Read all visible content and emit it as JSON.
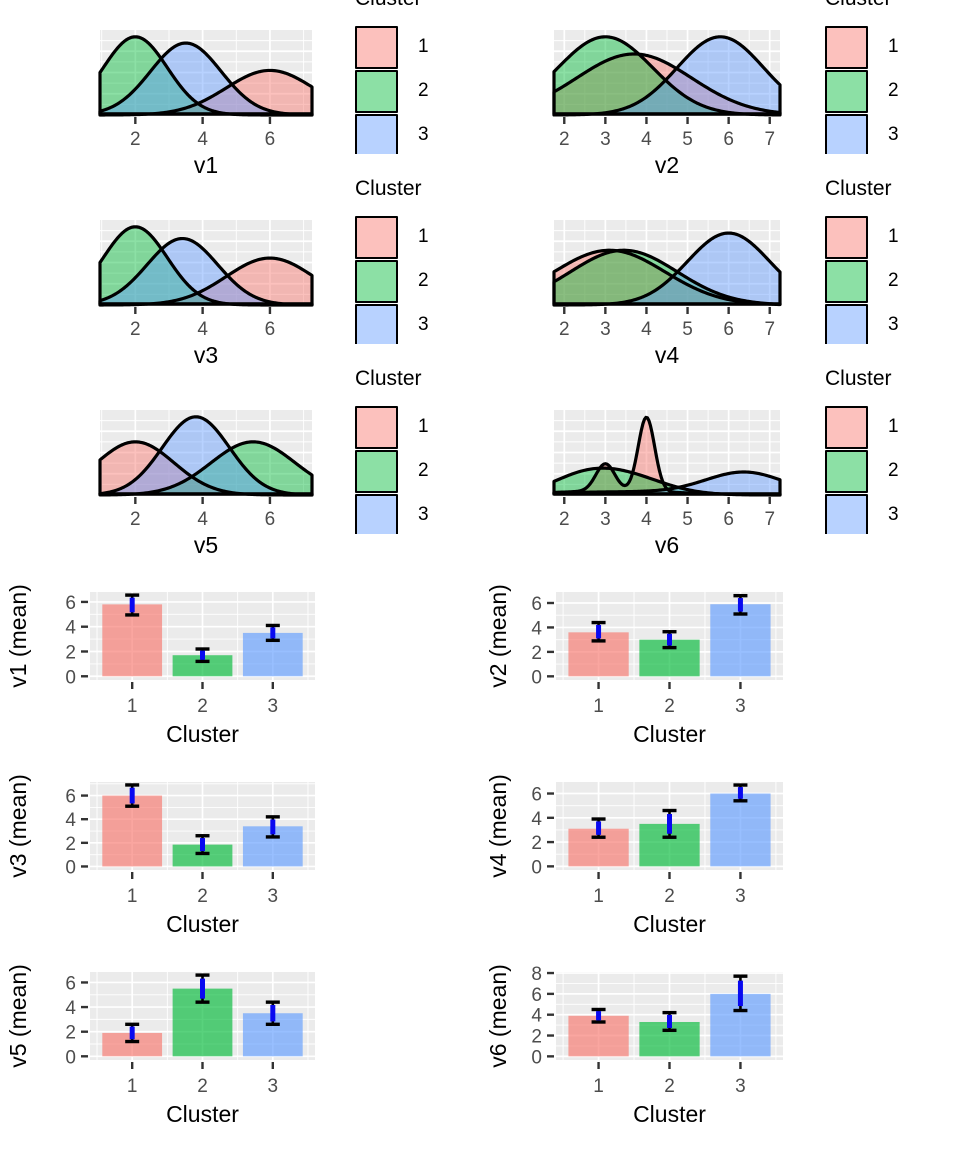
{
  "palette": {
    "c1": "#F8766D",
    "c2": "#00BA38",
    "c3": "#619CFF",
    "density_fill_alpha": 0.45,
    "bar_fill_alpha": 0.65,
    "curve_stroke": "#000000",
    "panel_bg": "#EBEBEB",
    "grid_color": "#FFFFFF",
    "tick_text_color": "#4D4D4D",
    "axis_title_color": "#000000",
    "tick_mark_color": "#333333",
    "errorbar_inner_color": "#0909F0",
    "errorbar_outer_color": "#000000"
  },
  "legend": {
    "title": "Cluster",
    "entries": [
      {
        "label": "1",
        "color": "c1"
      },
      {
        "label": "2",
        "color": "c2"
      },
      {
        "label": "3",
        "color": "c3"
      }
    ]
  },
  "chart_data": [
    {
      "kind": "density",
      "xlabel": "v1",
      "xlim": [
        0.95,
        7.25
      ],
      "x_ticks": [
        2,
        4,
        6
      ],
      "x_minor": [
        1,
        3,
        5,
        7
      ],
      "legend_title": "Cluster",
      "series": [
        {
          "cluster": "1",
          "color": "c1",
          "components": [
            [
              6.0,
              1.3,
              0.57
            ]
          ]
        },
        {
          "cluster": "2",
          "color": "c2",
          "components": [
            [
              2.0,
              0.95,
              1.0
            ]
          ]
        },
        {
          "cluster": "3",
          "color": "c3",
          "components": [
            [
              3.5,
              1.05,
              0.92
            ]
          ]
        }
      ]
    },
    {
      "kind": "density",
      "xlabel": "v2",
      "xlim": [
        1.75,
        7.25
      ],
      "x_ticks": [
        2,
        3,
        4,
        5,
        6,
        7
      ],
      "x_minor": [
        2.5,
        3.5,
        4.5,
        5.5,
        6.5
      ],
      "legend_title": "Cluster",
      "series": [
        {
          "cluster": "1",
          "color": "c1",
          "components": [
            [
              3.7,
              1.4,
              0.78
            ]
          ]
        },
        {
          "cluster": "2",
          "color": "c2",
          "components": [
            [
              3.0,
              1.15,
              1.0
            ]
          ]
        },
        {
          "cluster": "3",
          "color": "c3",
          "components": [
            [
              5.8,
              1.05,
              1.0
            ]
          ]
        }
      ]
    },
    {
      "kind": "density",
      "xlabel": "v3",
      "xlim": [
        0.95,
        7.25
      ],
      "x_ticks": [
        2,
        4,
        6
      ],
      "x_minor": [
        1,
        3,
        5,
        7
      ],
      "legend_title": "Cluster",
      "series": [
        {
          "cluster": "1",
          "color": "c1",
          "components": [
            [
              6.0,
              1.3,
              0.6
            ]
          ]
        },
        {
          "cluster": "2",
          "color": "c2",
          "components": [
            [
              2.0,
              0.95,
              1.0
            ]
          ]
        },
        {
          "cluster": "3",
          "color": "c3",
          "components": [
            [
              3.4,
              1.05,
              0.85
            ]
          ]
        }
      ]
    },
    {
      "kind": "density",
      "xlabel": "v4",
      "xlim": [
        1.75,
        7.25
      ],
      "x_ticks": [
        2,
        3,
        4,
        5,
        6,
        7
      ],
      "x_minor": [
        2.5,
        3.5,
        4.5,
        5.5,
        6.5
      ],
      "legend_title": "Cluster",
      "series": [
        {
          "cluster": "1",
          "color": "c1",
          "components": [
            [
              3.1,
              1.35,
              0.7
            ]
          ]
        },
        {
          "cluster": "2",
          "color": "c2",
          "components": [
            [
              3.45,
              1.3,
              0.7
            ]
          ]
        },
        {
          "cluster": "3",
          "color": "c3",
          "components": [
            [
              6.0,
              1.0,
              0.92
            ]
          ]
        }
      ]
    },
    {
      "kind": "density",
      "xlabel": "v5",
      "xlim": [
        0.95,
        7.25
      ],
      "x_ticks": [
        2,
        4,
        6
      ],
      "x_minor": [
        1,
        3,
        5,
        7
      ],
      "legend_title": "Cluster",
      "series": [
        {
          "cluster": "1",
          "color": "c1",
          "components": [
            [
              2.0,
              1.15,
              0.68
            ]
          ]
        },
        {
          "cluster": "2",
          "color": "c2",
          "components": [
            [
              5.5,
              1.25,
              0.68
            ]
          ]
        },
        {
          "cluster": "3",
          "color": "c3",
          "components": [
            [
              3.8,
              1.0,
              1.0
            ]
          ]
        }
      ]
    },
    {
      "kind": "density",
      "xlabel": "v6",
      "xlim": [
        1.75,
        7.25
      ],
      "x_ticks": [
        2,
        3,
        4,
        5,
        6,
        7
      ],
      "x_minor": [
        2.5,
        3.5,
        4.5,
        5.5,
        6.5
      ],
      "legend_title": "Cluster",
      "series": [
        {
          "cluster": "1",
          "color": "c1",
          "components": [
            [
              4.0,
              0.2,
              0.95
            ],
            [
              3.0,
              0.23,
              0.35
            ],
            [
              3.2,
              1.6,
              0.05
            ]
          ]
        },
        {
          "cluster": "2",
          "color": "c2",
          "components": [
            [
              3.2,
              1.05,
              0.3
            ],
            [
              2.3,
              0.7,
              0.08
            ]
          ]
        },
        {
          "cluster": "3",
          "color": "c3",
          "components": [
            [
              6.4,
              0.95,
              0.28
            ],
            [
              3.5,
              2.0,
              0.04
            ]
          ]
        }
      ]
    },
    {
      "kind": "bar",
      "xlabel": "Cluster",
      "ylabel": "v1 (mean)",
      "categories": [
        "1",
        "2",
        "3"
      ],
      "values": [
        5.8,
        1.7,
        3.5
      ],
      "err_low": [
        4.95,
        1.2,
        2.9
      ],
      "err_high": [
        6.55,
        2.2,
        4.1
      ],
      "y_ticks": [
        0,
        2,
        4,
        6
      ],
      "ylim": [
        -0.3,
        6.8
      ],
      "colors": [
        "c1",
        "c2",
        "c3"
      ]
    },
    {
      "kind": "bar",
      "xlabel": "Cluster",
      "ylabel": "v2 (mean)",
      "categories": [
        "1",
        "2",
        "3"
      ],
      "values": [
        3.6,
        3.0,
        5.9
      ],
      "err_low": [
        2.9,
        2.35,
        5.1
      ],
      "err_high": [
        4.4,
        3.65,
        6.6
      ],
      "y_ticks": [
        0,
        2,
        4,
        6
      ],
      "ylim": [
        -0.3,
        6.9
      ],
      "colors": [
        "c1",
        "c2",
        "c3"
      ]
    },
    {
      "kind": "bar",
      "xlabel": "Cluster",
      "ylabel": "v3 (mean)",
      "categories": [
        "1",
        "2",
        "3"
      ],
      "values": [
        6.0,
        1.85,
        3.4
      ],
      "err_low": [
        5.1,
        1.1,
        2.5
      ],
      "err_high": [
        6.9,
        2.6,
        4.2
      ],
      "y_ticks": [
        0,
        2,
        4,
        6
      ],
      "ylim": [
        -0.3,
        7.15
      ],
      "colors": [
        "c1",
        "c2",
        "c3"
      ]
    },
    {
      "kind": "bar",
      "xlabel": "Cluster",
      "ylabel": "v4 (mean)",
      "categories": [
        "1",
        "2",
        "3"
      ],
      "values": [
        3.1,
        3.5,
        6.0
      ],
      "err_low": [
        2.4,
        2.4,
        5.4
      ],
      "err_high": [
        3.9,
        4.6,
        6.7
      ],
      "y_ticks": [
        0,
        2,
        4,
        6
      ],
      "ylim": [
        -0.3,
        6.95
      ],
      "colors": [
        "c1",
        "c2",
        "c3"
      ]
    },
    {
      "kind": "bar",
      "xlabel": "Cluster",
      "ylabel": "v5 (mean)",
      "categories": [
        "1",
        "2",
        "3"
      ],
      "values": [
        1.9,
        5.5,
        3.5
      ],
      "err_low": [
        1.2,
        4.4,
        2.6
      ],
      "err_high": [
        2.6,
        6.6,
        4.4
      ],
      "y_ticks": [
        0,
        2,
        4,
        6
      ],
      "ylim": [
        -0.3,
        6.85
      ],
      "colors": [
        "c1",
        "c2",
        "c3"
      ]
    },
    {
      "kind": "bar",
      "xlabel": "Cluster",
      "ylabel": "v6 (mean)",
      "categories": [
        "1",
        "2",
        "3"
      ],
      "values": [
        3.9,
        3.3,
        6.0
      ],
      "err_low": [
        3.3,
        2.5,
        4.4
      ],
      "err_high": [
        4.5,
        4.2,
        7.7
      ],
      "y_ticks": [
        0,
        2,
        4,
        6,
        8
      ],
      "ylim": [
        -0.35,
        8.1
      ],
      "colors": [
        "c1",
        "c2",
        "c3"
      ]
    }
  ]
}
